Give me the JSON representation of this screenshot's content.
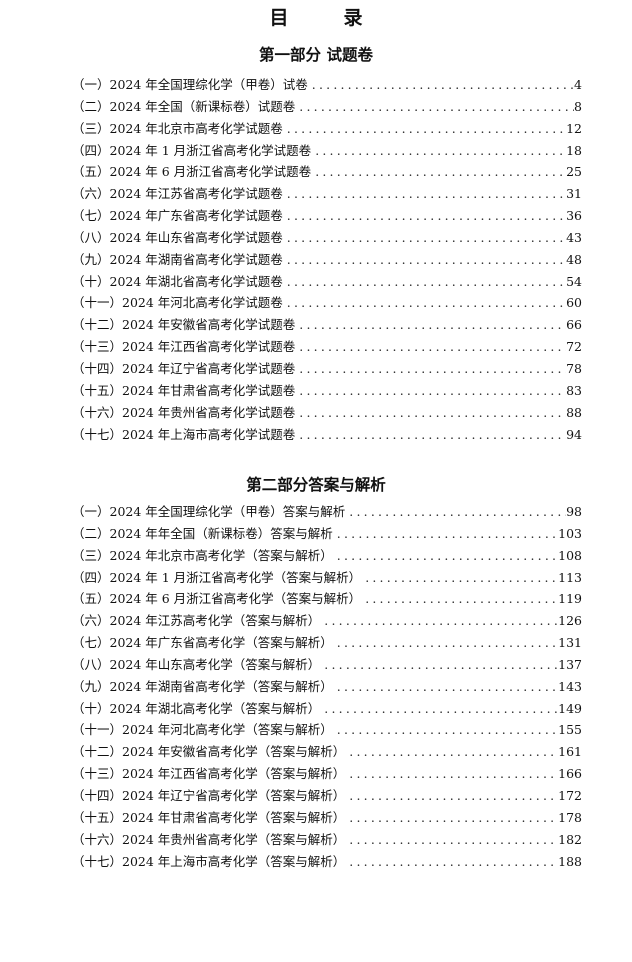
{
  "title": "目　录",
  "parts": [
    {
      "heading": "第一部分  试题卷",
      "entries": [
        {
          "label": "（一）2024 年全国理综化学（甲卷）试卷",
          "page": "4"
        },
        {
          "label": "（二）2024 年全国（新课标卷）试题卷",
          "page": "8"
        },
        {
          "label": "（三）2024 年北京市高考化学试题卷",
          "page": "12"
        },
        {
          "label": "（四）2024 年 1 月浙江省高考化学试题卷",
          "page": "18"
        },
        {
          "label": "（五）2024 年 6 月浙江省高考化学试题卷",
          "page": "25"
        },
        {
          "label": "（六）2024 年江苏省高考化学试题卷",
          "page": "31"
        },
        {
          "label": "（七）2024 年广东省高考化学试题卷",
          "page": "36"
        },
        {
          "label": "（八）2024 年山东省高考化学试题卷",
          "page": "43"
        },
        {
          "label": "（九）2024 年湖南省高考化学试题卷",
          "page": "48"
        },
        {
          "label": "（十）2024 年湖北省高考化学试题卷",
          "page": "54"
        },
        {
          "label": "（十一）2024 年河北高考化学试题卷",
          "page": "60"
        },
        {
          "label": "（十二）2024 年安徽省高考化学试题卷",
          "page": "66"
        },
        {
          "label": "（十三）2024 年江西省高考化学试题卷",
          "page": "72"
        },
        {
          "label": "（十四）2024 年辽宁省高考化学试题卷",
          "page": "78"
        },
        {
          "label": "（十五）2024 年甘肃省高考化学试题卷",
          "page": "83"
        },
        {
          "label": "（十六）2024 年贵州省高考化学试题卷",
          "page": "88"
        },
        {
          "label": "（十七）2024 年上海市高考化学试题卷",
          "page": "94"
        }
      ]
    },
    {
      "heading": "第二部分答案与解析",
      "entries": [
        {
          "label": "（一）2024 年全国理综化学（甲卷）答案与解析",
          "page": "98"
        },
        {
          "label": "（二）2024 年年全国（新课标卷）答案与解析",
          "page": "103"
        },
        {
          "label": "（三）2024 年北京市高考化学（答案与解析）",
          "page": "108"
        },
        {
          "label": "（四）2024 年 1 月浙江省高考化学（答案与解析）",
          "page": "113"
        },
        {
          "label": "（五）2024 年 6 月浙江省高考化学（答案与解析）",
          "page": "119"
        },
        {
          "label": "（六）2024 年江苏高考化学（答案与解析）",
          "page": "126"
        },
        {
          "label": "（七）2024 年广东省高考化学（答案与解析）",
          "page": "131"
        },
        {
          "label": "（八）2024 年山东高考化学（答案与解析）",
          "page": "137"
        },
        {
          "label": "（九）2024 年湖南省高考化学（答案与解析）",
          "page": "143"
        },
        {
          "label": "（十）2024 年湖北高考化学（答案与解析）",
          "page": "149"
        },
        {
          "label": "（十一）2024 年河北高考化学（答案与解析）",
          "page": "155"
        },
        {
          "label": "（十二）2024 年安徽省高考化学（答案与解析）",
          "page": "161"
        },
        {
          "label": "（十三）2024 年江西省高考化学（答案与解析）",
          "page": "166"
        },
        {
          "label": "（十四）2024 年辽宁省高考化学（答案与解析）",
          "page": "172"
        },
        {
          "label": "（十五）2024 年甘肃省高考化学（答案与解析）",
          "page": "178"
        },
        {
          "label": "（十六）2024 年贵州省高考化学（答案与解析）",
          "page": "182"
        },
        {
          "label": "（十七）2024 年上海市高考化学（答案与解析）",
          "page": "188"
        }
      ]
    }
  ]
}
